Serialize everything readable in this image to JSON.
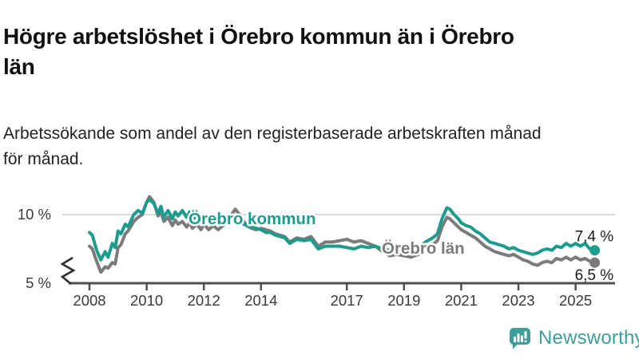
{
  "header": {
    "title_lines": [
      "Högre arbetslöshet i Örebro kommun än i Örebro",
      "län"
    ],
    "subtitle_lines": [
      "Arbetssökande som andel av den registerbaserade arbetskraften månad",
      "för månad."
    ]
  },
  "footer": {
    "brand": "Newsworthy",
    "logo_icon": "bar-chart-speech-bubble-icon",
    "brand_color": "#3F9E9A"
  },
  "colors": {
    "kommun_line": "#1D9C8E",
    "lan_line": "#7B7B7B",
    "axis": "#4F4F4F",
    "grid": "#D9D9D9",
    "tick_text": "#3a3a3a",
    "title_text": "#111111"
  },
  "chart_data": {
    "type": "line",
    "title": "Högre arbetslöshet i Örebro kommun än i Örebro län",
    "subtitle": "Arbetssökande som andel av den registerbaserade arbetskraften månad för månad.",
    "ylabel": "",
    "xlabel": "",
    "ylim": [
      5,
      11.5
    ],
    "x_range": [
      2008,
      2025.67
    ],
    "grid": "single-horizontal-gridline-at-10",
    "legend": "inline-series-labels",
    "axis_break": true,
    "x_ticks": [
      2008,
      2010,
      2012,
      2014,
      2017,
      2019,
      2021,
      2023,
      2025
    ],
    "y_ticks": [
      {
        "value": 10,
        "label": "10 %",
        "grid": true
      },
      {
        "value": 5,
        "label": "5 %",
        "grid": false
      }
    ],
    "x": [
      2008.0,
      2008.1,
      2008.25,
      2008.4,
      2008.55,
      2008.65,
      2008.8,
      2008.9,
      2009.0,
      2009.1,
      2009.25,
      2009.35,
      2009.55,
      2009.7,
      2009.85,
      2010.0,
      2010.1,
      2010.25,
      2010.4,
      2010.5,
      2010.6,
      2010.75,
      2010.9,
      2011.0,
      2011.1,
      2011.25,
      2011.4,
      2011.5,
      2011.6,
      2011.75,
      2011.9,
      2012.0,
      2012.17,
      2012.33,
      2012.5,
      2012.67,
      2012.83,
      2013.0,
      2013.1,
      2013.25,
      2013.4,
      2013.5,
      2013.67,
      2013.83,
      2014.0,
      2014.17,
      2014.33,
      2014.5,
      2014.67,
      2014.83,
      2015.0,
      2015.25,
      2015.5,
      2015.75,
      2016.0,
      2016.25,
      2016.5,
      2016.75,
      2017.0,
      2017.25,
      2017.5,
      2017.75,
      2018.0,
      2018.25,
      2018.5,
      2018.75,
      2019.0,
      2019.25,
      2019.5,
      2019.75,
      2020.0,
      2020.17,
      2020.33,
      2020.5,
      2020.6,
      2020.75,
      2020.9,
      2021.0,
      2021.17,
      2021.33,
      2021.5,
      2021.67,
      2021.83,
      2022.0,
      2022.17,
      2022.33,
      2022.5,
      2022.67,
      2022.83,
      2023.0,
      2023.17,
      2023.33,
      2023.5,
      2023.67,
      2023.83,
      2024.0,
      2024.17,
      2024.33,
      2024.5,
      2024.67,
      2024.83,
      2025.0,
      2025.17,
      2025.33,
      2025.5,
      2025.67
    ],
    "series": [
      {
        "name": "Örebro kommun",
        "color": "#1D9C8E",
        "end_label": "7,4 %",
        "final_value": 7.4,
        "values": [
          8.7,
          8.5,
          7.4,
          6.7,
          7.3,
          6.9,
          7.9,
          7.6,
          8.8,
          8.6,
          9.3,
          9.1,
          10.0,
          10.3,
          10.1,
          10.9,
          11.1,
          10.8,
          10.1,
          10.6,
          9.8,
          10.3,
          9.7,
          10.2,
          9.9,
          10.3,
          9.8,
          10.2,
          9.6,
          10.0,
          9.5,
          9.8,
          9.5,
          9.7,
          9.4,
          9.6,
          9.5,
          9.6,
          9.5,
          9.4,
          9.3,
          9.2,
          9.1,
          9.0,
          8.9,
          8.7,
          8.7,
          8.5,
          8.4,
          8.3,
          7.9,
          8.2,
          8.1,
          8.2,
          7.5,
          7.7,
          7.7,
          7.7,
          7.6,
          7.5,
          7.7,
          7.6,
          7.7,
          7.5,
          7.4,
          7.5,
          7.4,
          7.5,
          7.6,
          8.0,
          8.3,
          8.6,
          9.7,
          10.5,
          10.4,
          10.0,
          9.7,
          9.4,
          9.2,
          9.1,
          8.8,
          8.6,
          8.3,
          8.0,
          7.9,
          7.8,
          7.7,
          7.5,
          7.6,
          7.4,
          7.3,
          7.2,
          7.1,
          7.2,
          7.4,
          7.5,
          7.4,
          7.7,
          7.6,
          7.9,
          7.7,
          7.9,
          7.7,
          7.9,
          7.5,
          7.4
        ]
      },
      {
        "name": "Örebro län",
        "color": "#7B7B7B",
        "end_label": "6,5 %",
        "final_value": 6.5,
        "values": [
          7.7,
          7.5,
          6.6,
          5.8,
          6.2,
          6.1,
          6.5,
          6.4,
          7.6,
          7.8,
          8.6,
          8.8,
          9.5,
          9.8,
          10.0,
          10.9,
          11.3,
          10.9,
          9.9,
          10.2,
          9.5,
          9.8,
          9.2,
          9.6,
          9.3,
          9.5,
          9.1,
          9.4,
          9.0,
          9.3,
          8.9,
          9.3,
          8.9,
          9.2,
          8.9,
          9.2,
          9.6,
          10.1,
          10.4,
          10.0,
          9.5,
          9.2,
          9.0,
          8.9,
          9.0,
          8.9,
          8.8,
          8.6,
          8.5,
          8.4,
          8.0,
          8.3,
          8.2,
          8.4,
          7.7,
          8.0,
          8.0,
          8.1,
          8.2,
          8.0,
          8.1,
          7.9,
          7.7,
          7.3,
          7.0,
          7.1,
          7.0,
          6.9,
          7.1,
          7.5,
          7.8,
          8.1,
          9.1,
          9.8,
          9.7,
          9.4,
          9.1,
          8.9,
          8.7,
          8.5,
          8.3,
          8.0,
          7.7,
          7.5,
          7.3,
          7.2,
          7.1,
          7.0,
          7.1,
          6.9,
          6.7,
          6.6,
          6.4,
          6.3,
          6.5,
          6.6,
          6.5,
          6.8,
          6.7,
          6.9,
          6.7,
          6.9,
          6.7,
          6.8,
          6.6,
          6.5
        ]
      }
    ]
  }
}
